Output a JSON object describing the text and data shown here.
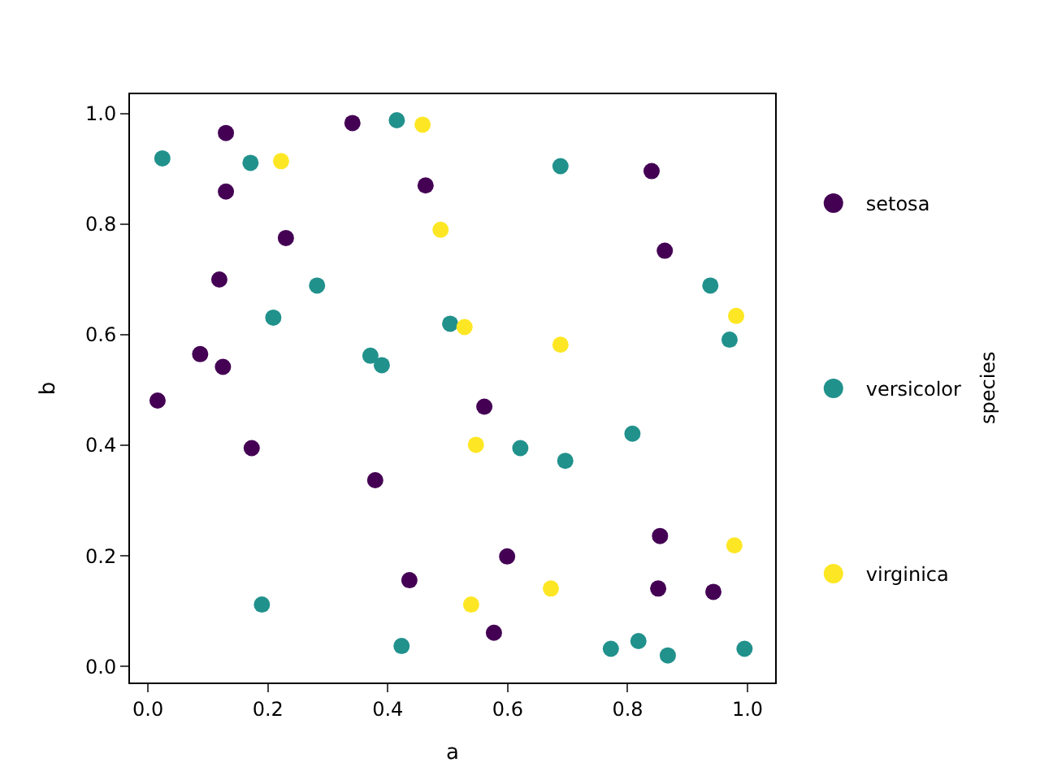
{
  "chart_data": {
    "type": "scatter",
    "xlabel": "a",
    "ylabel": "b",
    "clabel": "species",
    "grid": false,
    "legend": "right",
    "marker": "circle",
    "xlim": [
      -0.03,
      1.046
    ],
    "ylim": [
      -0.029,
      1.035
    ],
    "xticks": [
      {
        "value": 0,
        "label": "0.0"
      },
      {
        "value": 0.2,
        "label": "0.2"
      },
      {
        "value": 0.4,
        "label": "0.4"
      },
      {
        "value": 0.6,
        "label": "0.6"
      },
      {
        "value": 0.8,
        "label": "0.8"
      },
      {
        "value": 1,
        "label": "1.0"
      }
    ],
    "yticks": [
      {
        "value": 0,
        "label": "0.0"
      },
      {
        "value": 0.2,
        "label": "0.2"
      },
      {
        "value": 0.4,
        "label": "0.4"
      },
      {
        "value": 0.6,
        "label": "0.6"
      },
      {
        "value": 0.8,
        "label": "0.8"
      },
      {
        "value": 1,
        "label": "1.0"
      }
    ],
    "series": [
      {
        "name": "setosa",
        "color": "#440154",
        "x": [
          0.13,
          0.341,
          0.13,
          0.23,
          0.119,
          0.087,
          0.125,
          0.016,
          0.173,
          0.463,
          0.84,
          0.862,
          0.561,
          0.379,
          0.436,
          0.599,
          0.854,
          0.851,
          0.943,
          0.577
        ],
        "values": [
          0.965,
          0.983,
          0.859,
          0.775,
          0.7,
          0.565,
          0.542,
          0.481,
          0.395,
          0.87,
          0.896,
          0.752,
          0.47,
          0.337,
          0.156,
          0.199,
          0.236,
          0.141,
          0.135,
          0.061
        ]
      },
      {
        "name": "versicolor",
        "color": "#21918c",
        "x": [
          0.024,
          0.171,
          0.415,
          0.688,
          0.282,
          0.209,
          0.371,
          0.39,
          0.504,
          0.938,
          0.97,
          0.621,
          0.696,
          0.808,
          0.19,
          0.423,
          0.772,
          0.818,
          0.867,
          0.995
        ],
        "values": [
          0.919,
          0.911,
          0.988,
          0.905,
          0.689,
          0.631,
          0.562,
          0.545,
          0.62,
          0.689,
          0.591,
          0.395,
          0.372,
          0.421,
          0.112,
          0.037,
          0.032,
          0.046,
          0.02,
          0.032
        ]
      },
      {
        "name": "virginica",
        "color": "#fde725",
        "x": [
          0.458,
          0.222,
          0.488,
          0.528,
          0.688,
          0.981,
          0.547,
          0.978,
          0.539,
          0.672
        ],
        "values": [
          0.98,
          0.914,
          0.79,
          0.614,
          0.582,
          0.634,
          0.401,
          0.219,
          0.112,
          0.141
        ]
      }
    ]
  }
}
